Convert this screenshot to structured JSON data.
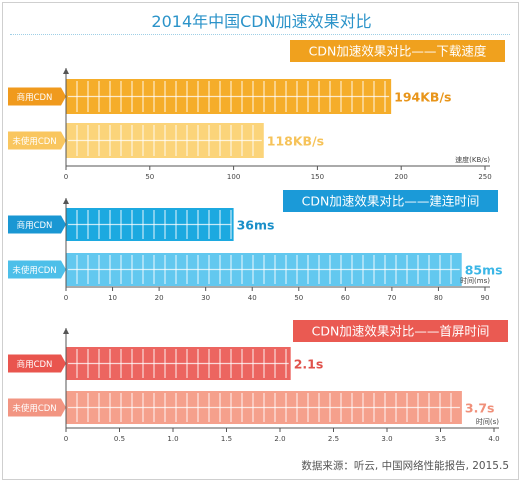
{
  "title": "2014年中国CDN加速效果对比",
  "source": "数据来源：听云, 中国网络性能报告, 2015.5",
  "chart_data": [
    {
      "type": "bar",
      "title": "CDN加速效果对比——下载速度",
      "categories": [
        "商用CDN",
        "未使用CDN"
      ],
      "values": [
        194,
        118
      ],
      "data_labels": [
        "194KB/s",
        "118KB/s"
      ],
      "xlabel": "速度(KB/s)",
      "xlim": [
        0,
        250
      ],
      "ticks": [
        0,
        50,
        100,
        150,
        200,
        250
      ],
      "tick_labels": [
        "0",
        "50",
        "100",
        "150",
        "200",
        "250"
      ],
      "colors": {
        "banner": "#f0a11e",
        "bar_primary": "#f5ad2a",
        "bar_secondary": "#fbd47a",
        "label_primary": "#e8951a",
        "label_secondary": "#f6c35a",
        "tag_primary": "#f09a1d",
        "tag_secondary": "#f9c65f"
      }
    },
    {
      "type": "bar",
      "title": "CDN加速效果对比——建连时间",
      "categories": [
        "商用CDN",
        "未使用CDN"
      ],
      "values": [
        36,
        85
      ],
      "data_labels": [
        "36ms",
        "85ms"
      ],
      "xlabel": "时间(ms)",
      "xlim": [
        0,
        90
      ],
      "ticks": [
        0,
        10,
        20,
        30,
        40,
        50,
        60,
        70,
        80,
        90
      ],
      "tick_labels": [
        "0",
        "10",
        "20",
        "30",
        "40",
        "50",
        "60",
        "70",
        "80",
        "90"
      ],
      "colors": {
        "banner": "#1b9ad8",
        "bar_primary": "#1ca9e0",
        "bar_secondary": "#62c8ef",
        "label_primary": "#1a8fc9",
        "label_secondary": "#3bb6e6",
        "tag_primary": "#1a97d3",
        "tag_secondary": "#4dbfe9"
      }
    },
    {
      "type": "bar",
      "title": "CDN加速效果对比——首屏时间",
      "categories": [
        "商用CDN",
        "未使用CDN"
      ],
      "values": [
        2.1,
        3.7
      ],
      "data_labels": [
        "2.1s",
        "3.7s"
      ],
      "xlabel": "时间(s)",
      "xlim": [
        0,
        4.0
      ],
      "ticks": [
        0,
        0.5,
        1.0,
        1.5,
        2.0,
        2.5,
        3.0,
        3.5,
        4.0
      ],
      "tick_labels": [
        "0",
        "0.5",
        "1.0",
        "1.5",
        "2.0",
        "2.5",
        "3.0",
        "3.5",
        "4.0"
      ],
      "colors": {
        "banner": "#ea5a52",
        "bar_primary": "#ec6560",
        "bar_secondary": "#f5a08c",
        "label_primary": "#e0524b",
        "label_secondary": "#f0907a",
        "tag_primary": "#e9554e",
        "tag_secondary": "#f29582"
      }
    }
  ]
}
